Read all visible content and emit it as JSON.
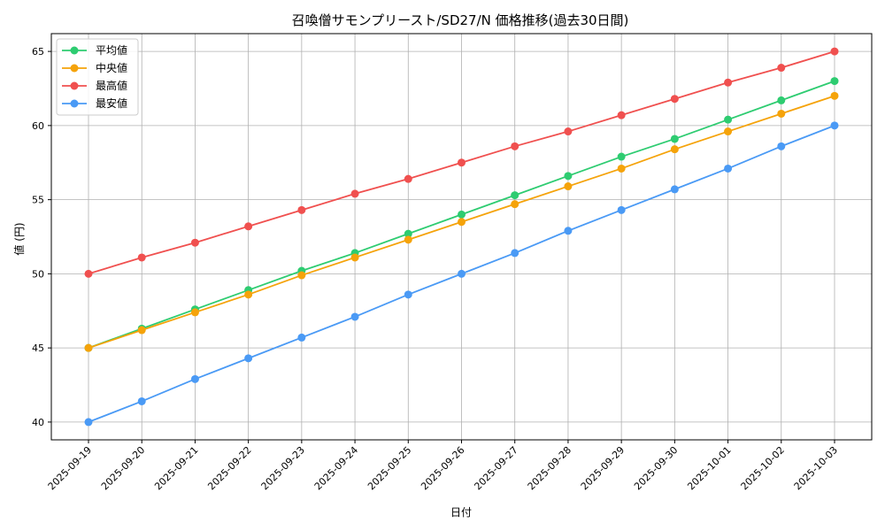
{
  "chart_data": {
    "type": "line",
    "title": "召喚僧サモンプリースト/SD27/N 価格推移(過去30日間)",
    "xlabel": "日付",
    "ylabel": "値 (円)",
    "categories": [
      "2025-09-19",
      "2025-09-20",
      "2025-09-21",
      "2025-09-22",
      "2025-09-23",
      "2025-09-24",
      "2025-09-25",
      "2025-09-26",
      "2025-09-27",
      "2025-09-28",
      "2025-09-29",
      "2025-09-30",
      "2025-10-01",
      "2025-10-02",
      "2025-10-03"
    ],
    "ylim": [
      38.8,
      66.2
    ],
    "yticks": [
      40,
      45,
      50,
      55,
      60,
      65
    ],
    "grid": true,
    "legend_position": "top-left",
    "series": [
      {
        "name": "平均値",
        "color": "#2ecc71",
        "values": [
          45.0,
          46.3,
          47.6,
          48.9,
          50.2,
          51.4,
          52.7,
          54.0,
          55.3,
          56.6,
          57.9,
          59.1,
          60.4,
          61.7,
          63.0
        ]
      },
      {
        "name": "中央値",
        "color": "#f5a30a",
        "values": [
          45.0,
          46.2,
          47.4,
          48.6,
          49.9,
          51.1,
          52.3,
          53.5,
          54.7,
          55.9,
          57.1,
          58.4,
          59.6,
          60.8,
          62.0
        ]
      },
      {
        "name": "最高値",
        "color": "#f0504f",
        "values": [
          50.0,
          51.1,
          52.1,
          53.2,
          54.3,
          55.4,
          56.4,
          57.5,
          58.6,
          59.6,
          60.7,
          61.8,
          62.9,
          63.9,
          65.0
        ]
      },
      {
        "name": "最安値",
        "color": "#4a9af5",
        "values": [
          40.0,
          41.4,
          42.9,
          44.3,
          45.7,
          47.1,
          48.6,
          50.0,
          51.4,
          52.9,
          54.3,
          55.7,
          57.1,
          58.6,
          60.0
        ]
      }
    ]
  }
}
